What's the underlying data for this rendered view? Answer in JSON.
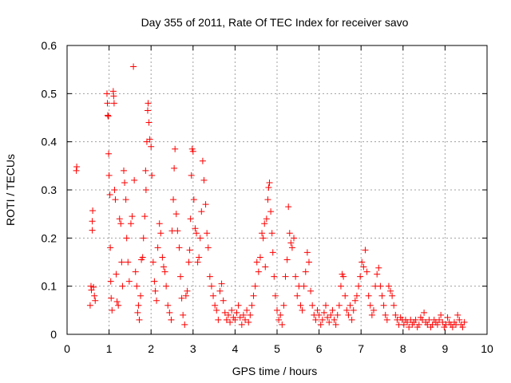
{
  "chart_data": {
    "type": "scatter",
    "title": "Day 355 of 2011, Rate Of TEC Index for receiver savo",
    "xlabel": "GPS time / hours",
    "ylabel": "ROTI / TECUs",
    "xlim": [
      0,
      10
    ],
    "ylim": [
      0,
      0.6
    ],
    "xticks": [
      "0",
      "1",
      "2",
      "3",
      "4",
      "5",
      "6",
      "7",
      "8",
      "9",
      "10"
    ],
    "yticks": [
      "0",
      "0.1",
      "0.2",
      "0.3",
      "0.4",
      "0.5",
      "0.6"
    ],
    "grid": true,
    "marker": "plus",
    "color": "#ff0000",
    "series": [
      {
        "points": [
          [
            0.22,
            0.34
          ],
          [
            0.23,
            0.348
          ],
          [
            0.55,
            0.06
          ],
          [
            0.57,
            0.1
          ],
          [
            0.58,
            0.092
          ],
          [
            0.6,
            0.216
          ],
          [
            0.6,
            0.235
          ],
          [
            0.61,
            0.257
          ],
          [
            0.63,
            0.098
          ],
          [
            0.65,
            0.08
          ],
          [
            0.67,
            0.07
          ],
          [
            0.95,
            0.5
          ],
          [
            0.96,
            0.48
          ],
          [
            0.97,
            0.455
          ],
          [
            0.98,
            0.453
          ],
          [
            0.99,
            0.375
          ],
          [
            1.0,
            0.33
          ],
          [
            1.02,
            0.29
          ],
          [
            1.03,
            0.18
          ],
          [
            1.04,
            0.11
          ],
          [
            1.05,
            0.075
          ],
          [
            1.07,
            0.05
          ],
          [
            1.1,
            0.505
          ],
          [
            1.11,
            0.495
          ],
          [
            1.12,
            0.48
          ],
          [
            1.13,
            0.3
          ],
          [
            1.15,
            0.28
          ],
          [
            1.17,
            0.125
          ],
          [
            1.19,
            0.068
          ],
          [
            1.22,
            0.06
          ],
          [
            1.25,
            0.24
          ],
          [
            1.28,
            0.23
          ],
          [
            1.3,
            0.15
          ],
          [
            1.32,
            0.1
          ],
          [
            1.35,
            0.34
          ],
          [
            1.37,
            0.315
          ],
          [
            1.4,
            0.28
          ],
          [
            1.42,
            0.2
          ],
          [
            1.45,
            0.15
          ],
          [
            1.48,
            0.11
          ],
          [
            1.52,
            0.23
          ],
          [
            1.55,
            0.245
          ],
          [
            1.58,
            0.556
          ],
          [
            1.6,
            0.32
          ],
          [
            1.63,
            0.13
          ],
          [
            1.66,
            0.1
          ],
          [
            1.68,
            0.045
          ],
          [
            1.7,
            0.06
          ],
          [
            1.72,
            0.03
          ],
          [
            1.75,
            0.08
          ],
          [
            1.77,
            0.155
          ],
          [
            1.8,
            0.16
          ],
          [
            1.82,
            0.2
          ],
          [
            1.85,
            0.245
          ],
          [
            1.87,
            0.34
          ],
          [
            1.88,
            0.3
          ],
          [
            1.9,
            0.4
          ],
          [
            1.92,
            0.465
          ],
          [
            1.93,
            0.48
          ],
          [
            1.95,
            0.44
          ],
          [
            1.97,
            0.405
          ],
          [
            2.0,
            0.39
          ],
          [
            2.02,
            0.33
          ],
          [
            2.05,
            0.15
          ],
          [
            2.08,
            0.11
          ],
          [
            2.1,
            0.09
          ],
          [
            2.13,
            0.07
          ],
          [
            2.16,
            0.18
          ],
          [
            2.2,
            0.23
          ],
          [
            2.23,
            0.21
          ],
          [
            2.27,
            0.16
          ],
          [
            2.3,
            0.14
          ],
          [
            2.33,
            0.13
          ],
          [
            2.36,
            0.1
          ],
          [
            2.4,
            0.06
          ],
          [
            2.44,
            0.045
          ],
          [
            2.48,
            0.03
          ],
          [
            2.5,
            0.215
          ],
          [
            2.53,
            0.28
          ],
          [
            2.55,
            0.345
          ],
          [
            2.57,
            0.385
          ],
          [
            2.6,
            0.25
          ],
          [
            2.63,
            0.215
          ],
          [
            2.67,
            0.18
          ],
          [
            2.7,
            0.12
          ],
          [
            2.73,
            0.075
          ],
          [
            2.76,
            0.04
          ],
          [
            2.8,
            0.02
          ],
          [
            2.83,
            0.08
          ],
          [
            2.86,
            0.09
          ],
          [
            2.9,
            0.15
          ],
          [
            2.92,
            0.175
          ],
          [
            2.94,
            0.24
          ],
          [
            2.96,
            0.33
          ],
          [
            2.98,
            0.385
          ],
          [
            3.0,
            0.38
          ],
          [
            3.02,
            0.28
          ],
          [
            3.05,
            0.22
          ],
          [
            3.08,
            0.21
          ],
          [
            3.11,
            0.15
          ],
          [
            3.14,
            0.16
          ],
          [
            3.17,
            0.2
          ],
          [
            3.2,
            0.255
          ],
          [
            3.23,
            0.36
          ],
          [
            3.26,
            0.32
          ],
          [
            3.3,
            0.27
          ],
          [
            3.33,
            0.21
          ],
          [
            3.36,
            0.18
          ],
          [
            3.4,
            0.12
          ],
          [
            3.44,
            0.1
          ],
          [
            3.48,
            0.08
          ],
          [
            3.52,
            0.06
          ],
          [
            3.56,
            0.05
          ],
          [
            3.6,
            0.03
          ],
          [
            3.64,
            0.09
          ],
          [
            3.68,
            0.105
          ],
          [
            3.72,
            0.07
          ],
          [
            3.76,
            0.045
          ],
          [
            3.8,
            0.03
          ],
          [
            3.84,
            0.04
          ],
          [
            3.88,
            0.025
          ],
          [
            3.92,
            0.05
          ],
          [
            3.96,
            0.035
          ],
          [
            4.0,
            0.03
          ],
          [
            4.04,
            0.045
          ],
          [
            4.08,
            0.06
          ],
          [
            4.12,
            0.035
          ],
          [
            4.16,
            0.02
          ],
          [
            4.2,
            0.04
          ],
          [
            4.24,
            0.03
          ],
          [
            4.28,
            0.05
          ],
          [
            4.32,
            0.025
          ],
          [
            4.36,
            0.04
          ],
          [
            4.4,
            0.06
          ],
          [
            4.44,
            0.08
          ],
          [
            4.48,
            0.1
          ],
          [
            4.52,
            0.15
          ],
          [
            4.56,
            0.13
          ],
          [
            4.6,
            0.16
          ],
          [
            4.64,
            0.21
          ],
          [
            4.67,
            0.2
          ],
          [
            4.7,
            0.23
          ],
          [
            4.72,
            0.14
          ],
          [
            4.75,
            0.24
          ],
          [
            4.78,
            0.28
          ],
          [
            4.8,
            0.305
          ],
          [
            4.82,
            0.315
          ],
          [
            4.85,
            0.255
          ],
          [
            4.88,
            0.21
          ],
          [
            4.9,
            0.17
          ],
          [
            4.93,
            0.12
          ],
          [
            4.96,
            0.08
          ],
          [
            5.0,
            0.05
          ],
          [
            5.04,
            0.03
          ],
          [
            5.08,
            0.04
          ],
          [
            5.12,
            0.02
          ],
          [
            5.16,
            0.06
          ],
          [
            5.2,
            0.12
          ],
          [
            5.24,
            0.155
          ],
          [
            5.27,
            0.265
          ],
          [
            5.3,
            0.21
          ],
          [
            5.33,
            0.19
          ],
          [
            5.36,
            0.18
          ],
          [
            5.4,
            0.2
          ],
          [
            5.44,
            0.12
          ],
          [
            5.48,
            0.08
          ],
          [
            5.52,
            0.1
          ],
          [
            5.56,
            0.06
          ],
          [
            5.6,
            0.05
          ],
          [
            5.64,
            0.1
          ],
          [
            5.68,
            0.13
          ],
          [
            5.72,
            0.17
          ],
          [
            5.76,
            0.15
          ],
          [
            5.8,
            0.09
          ],
          [
            5.84,
            0.06
          ],
          [
            5.88,
            0.04
          ],
          [
            5.92,
            0.03
          ],
          [
            5.96,
            0.05
          ],
          [
            6.0,
            0.04
          ],
          [
            6.04,
            0.02
          ],
          [
            6.08,
            0.03
          ],
          [
            6.12,
            0.045
          ],
          [
            6.16,
            0.06
          ],
          [
            6.2,
            0.035
          ],
          [
            6.24,
            0.025
          ],
          [
            6.28,
            0.04
          ],
          [
            6.32,
            0.05
          ],
          [
            6.36,
            0.03
          ],
          [
            6.4,
            0.02
          ],
          [
            6.44,
            0.04
          ],
          [
            6.48,
            0.06
          ],
          [
            6.52,
            0.1
          ],
          [
            6.55,
            0.125
          ],
          [
            6.58,
            0.12
          ],
          [
            6.62,
            0.08
          ],
          [
            6.66,
            0.05
          ],
          [
            6.7,
            0.04
          ],
          [
            6.74,
            0.06
          ],
          [
            6.78,
            0.03
          ],
          [
            6.82,
            0.05
          ],
          [
            6.86,
            0.07
          ],
          [
            6.9,
            0.08
          ],
          [
            6.94,
            0.1
          ],
          [
            6.98,
            0.12
          ],
          [
            7.02,
            0.15
          ],
          [
            7.06,
            0.14
          ],
          [
            7.1,
            0.175
          ],
          [
            7.14,
            0.13
          ],
          [
            7.18,
            0.08
          ],
          [
            7.22,
            0.06
          ],
          [
            7.26,
            0.04
          ],
          [
            7.3,
            0.05
          ],
          [
            7.34,
            0.1
          ],
          [
            7.38,
            0.125
          ],
          [
            7.42,
            0.138
          ],
          [
            7.46,
            0.1
          ],
          [
            7.5,
            0.08
          ],
          [
            7.54,
            0.06
          ],
          [
            7.58,
            0.04
          ],
          [
            7.62,
            0.03
          ],
          [
            7.66,
            0.1
          ],
          [
            7.7,
            0.09
          ],
          [
            7.74,
            0.08
          ],
          [
            7.78,
            0.06
          ],
          [
            7.82,
            0.04
          ],
          [
            7.86,
            0.03
          ],
          [
            7.9,
            0.02
          ],
          [
            7.94,
            0.035
          ],
          [
            7.98,
            0.03
          ],
          [
            8.02,
            0.02
          ],
          [
            8.06,
            0.03
          ],
          [
            8.1,
            0.025
          ],
          [
            8.14,
            0.015
          ],
          [
            8.18,
            0.03
          ],
          [
            8.22,
            0.02
          ],
          [
            8.26,
            0.025
          ],
          [
            8.3,
            0.03
          ],
          [
            8.34,
            0.015
          ],
          [
            8.38,
            0.02
          ],
          [
            8.42,
            0.035
          ],
          [
            8.46,
            0.03
          ],
          [
            8.5,
            0.045
          ],
          [
            8.54,
            0.025
          ],
          [
            8.58,
            0.02
          ],
          [
            8.62,
            0.03
          ],
          [
            8.66,
            0.015
          ],
          [
            8.7,
            0.02
          ],
          [
            8.74,
            0.03
          ],
          [
            8.78,
            0.025
          ],
          [
            8.82,
            0.02
          ],
          [
            8.86,
            0.03
          ],
          [
            8.9,
            0.04
          ],
          [
            8.94,
            0.025
          ],
          [
            8.98,
            0.015
          ],
          [
            9.02,
            0.02
          ],
          [
            9.06,
            0.035
          ],
          [
            9.1,
            0.025
          ],
          [
            9.14,
            0.02
          ],
          [
            9.18,
            0.015
          ],
          [
            9.22,
            0.025
          ],
          [
            9.26,
            0.02
          ],
          [
            9.3,
            0.04
          ],
          [
            9.34,
            0.03
          ],
          [
            9.38,
            0.02
          ],
          [
            9.42,
            0.015
          ],
          [
            9.46,
            0.025
          ]
        ]
      }
    ]
  }
}
